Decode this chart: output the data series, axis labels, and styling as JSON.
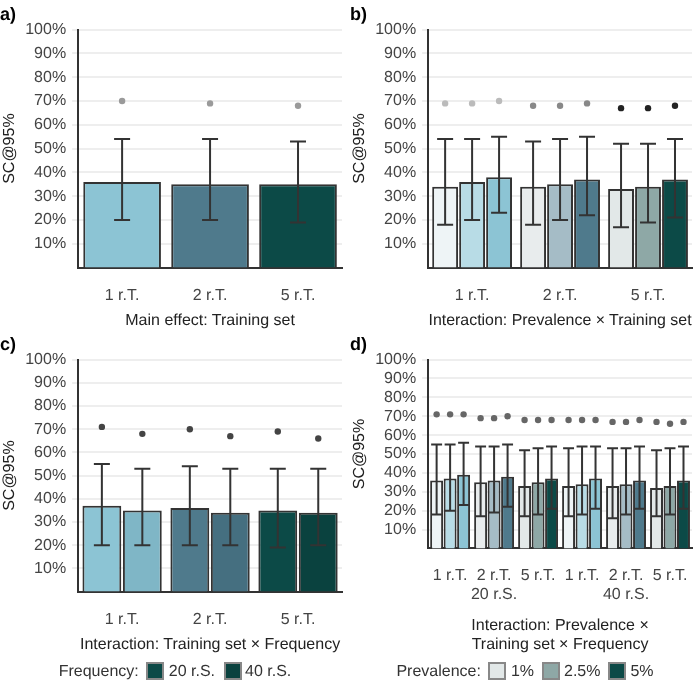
{
  "chart_data": [
    {
      "type": "bar",
      "title": "a)",
      "xlabel": "Main effect: Training set",
      "ylabel": "SC@95%",
      "categories": [
        "1 r.T.",
        "2 r.T.",
        "5 r.T."
      ],
      "ylim": [
        0,
        100
      ],
      "yticks": [
        {
          "value": 10,
          "label": "10%"
        },
        {
          "value": 20,
          "label": "20%"
        },
        {
          "value": 30,
          "label": "30%"
        },
        {
          "value": 40,
          "label": "40%"
        },
        {
          "value": 50,
          "label": "50%"
        },
        {
          "value": 60,
          "label": "60%"
        },
        {
          "value": 70,
          "label": "70%"
        },
        {
          "value": 80,
          "label": "80%"
        },
        {
          "value": 90,
          "label": "90%"
        },
        {
          "value": 100,
          "label": "100%"
        }
      ],
      "grid": "y",
      "legend": false,
      "series": [
        {
          "values": [
            36,
            35,
            35
          ],
          "colors": [
            "#8cc4d4",
            "#4f7a8c",
            "#0c4a47"
          ],
          "errors": [
            [
              20,
              54
            ],
            [
              20,
              54
            ],
            [
              19,
              53
            ]
          ]
        },
        {
          "type": "scatter",
          "values": [
            70,
            69,
            68
          ],
          "color": "#9a9a9a"
        }
      ]
    },
    {
      "type": "bar",
      "title": "b)",
      "xlabel": "Interaction: Prevalence × Training set",
      "ylabel": "SC@95%",
      "categories": [
        "1 r.T.",
        "2 r.T.",
        "5 r.T."
      ],
      "ylim": [
        0,
        100
      ],
      "yticks": [
        {
          "value": 10,
          "label": "10%"
        },
        {
          "value": 20,
          "label": "20%"
        },
        {
          "value": 30,
          "label": "30%"
        },
        {
          "value": 40,
          "label": "40%"
        },
        {
          "value": 50,
          "label": "50%"
        },
        {
          "value": 60,
          "label": "60%"
        },
        {
          "value": 70,
          "label": "70%"
        },
        {
          "value": 80,
          "label": "80%"
        },
        {
          "value": 90,
          "label": "90%"
        },
        {
          "value": 100,
          "label": "100%"
        }
      ],
      "grid": "y",
      "legend": false,
      "series": [
        {
          "values": [
            34,
            34,
            33
          ],
          "colors": [
            "#eef4f6",
            "#e8eced",
            "#e2e8e8"
          ],
          "errors": [
            [
              18,
              54
            ],
            [
              18,
              53
            ],
            [
              17,
              52
            ]
          ]
        },
        {
          "values": [
            36,
            35,
            34
          ],
          "colors": [
            "#b8dce6",
            "#a5bcc6",
            "#8ea8a6"
          ],
          "errors": [
            [
              20,
              54
            ],
            [
              20,
              54
            ],
            [
              19,
              52
            ]
          ]
        },
        {
          "values": [
            38,
            37,
            37
          ],
          "colors": [
            "#8cc4d4",
            "#4f7a8c",
            "#0c4a47"
          ],
          "errors": [
            [
              23,
              55
            ],
            [
              22,
              55
            ],
            [
              21,
              54
            ]
          ]
        },
        {
          "type": "scatter",
          "values": [
            69,
            68,
            67
          ],
          "colors": [
            "#bbbbbb",
            "#888888",
            "#222222"
          ]
        },
        {
          "type": "scatter",
          "values": [
            69,
            68,
            67
          ],
          "colors": [
            "#bbbbbb",
            "#888888",
            "#222222"
          ]
        },
        {
          "type": "scatter",
          "values": [
            70,
            69,
            68
          ],
          "colors": [
            "#bbbbbb",
            "#888888",
            "#222222"
          ]
        }
      ]
    },
    {
      "type": "bar",
      "title": "c)",
      "xlabel": "Interaction: Training set × Frequency",
      "ylabel": "SC@95%",
      "legend_title": "Frequency:",
      "categories": [
        "1 r.T.",
        "2 r.T.",
        "5 r.T."
      ],
      "ylim": [
        0,
        100
      ],
      "yticks": [
        {
          "value": 10,
          "label": "10%"
        },
        {
          "value": 20,
          "label": "20%"
        },
        {
          "value": 30,
          "label": "30%"
        },
        {
          "value": 40,
          "label": "40%"
        },
        {
          "value": 50,
          "label": "50%"
        },
        {
          "value": 60,
          "label": "60%"
        },
        {
          "value": 70,
          "label": "70%"
        },
        {
          "value": 80,
          "label": "80%"
        },
        {
          "value": 90,
          "label": "90%"
        },
        {
          "value": 100,
          "label": "100%"
        }
      ],
      "grid": "y",
      "legend": "bottom",
      "series": [
        {
          "name": "20 r.S.",
          "values": [
            37,
            36,
            35
          ],
          "colors": [
            "#8cc4d4",
            "#4f7a8c",
            "#0c4a47"
          ],
          "errors": [
            [
              20,
              55
            ],
            [
              20,
              54
            ],
            [
              19,
              53
            ]
          ]
        },
        {
          "name": "40 r.S.",
          "values": [
            35,
            34,
            34
          ],
          "colors": [
            "#7fb6c6",
            "#456f80",
            "#0a423f"
          ],
          "errors": [
            [
              20,
              53
            ],
            [
              20,
              53
            ],
            [
              20,
              53
            ]
          ]
        },
        {
          "type": "scatter",
          "values": [
            71,
            70,
            69
          ],
          "color": "#444444"
        },
        {
          "type": "scatter",
          "values": [
            68,
            67,
            66
          ],
          "color": "#444444"
        }
      ]
    },
    {
      "type": "bar",
      "title": "d)",
      "xlabel": "Interaction: Prevalence × Training set × Frequency",
      "ylabel": "SC@95%",
      "legend_title": "Prevalence:",
      "annotations": [
        "20 r.S.",
        "40 r.S."
      ],
      "categories": [
        "1 r.T.",
        "2 r.T.",
        "5 r.T.",
        "1 r.T.",
        "2 r.T.",
        "5 r.T."
      ],
      "ylim": [
        0,
        100
      ],
      "yticks": [
        {
          "value": 10,
          "label": "10%"
        },
        {
          "value": 20,
          "label": "20%"
        },
        {
          "value": 30,
          "label": "30%"
        },
        {
          "value": 40,
          "label": "40%"
        },
        {
          "value": 50,
          "label": "50%"
        },
        {
          "value": 60,
          "label": "60%"
        },
        {
          "value": 70,
          "label": "70%"
        },
        {
          "value": 80,
          "label": "80%"
        },
        {
          "value": 90,
          "label": "90%"
        },
        {
          "value": 100,
          "label": "100%"
        }
      ],
      "grid": "y",
      "legend": "bottom",
      "series": [
        {
          "name": "1%",
          "values": [
            36,
            35,
            33,
            33,
            33,
            32
          ],
          "colors": [
            "#eef4f6",
            "#e8eced",
            "#e2e8e8",
            "#eef4f6",
            "#e8eced",
            "#e2e8e8"
          ],
          "errors": [
            [
              18,
              55
            ],
            [
              17,
              54
            ],
            [
              17,
              52
            ],
            [
              17,
              53
            ],
            [
              16,
              53
            ],
            [
              17,
              52
            ]
          ]
        },
        {
          "name": "2.5%",
          "values": [
            37,
            36,
            35,
            34,
            34,
            33
          ],
          "colors": [
            "#b8dce6",
            "#a5bcc6",
            "#8ea8a6",
            "#b8dce6",
            "#a5bcc6",
            "#8ea8a6"
          ],
          "errors": [
            [
              20,
              55
            ],
            [
              19,
              54
            ],
            [
              18,
              53
            ],
            [
              18,
              54
            ],
            [
              18,
              53
            ],
            [
              18,
              53
            ]
          ]
        },
        {
          "name": "5%",
          "values": [
            39,
            38,
            37,
            37,
            36,
            36
          ],
          "colors": [
            "#8cc4d4",
            "#4f7a8c",
            "#0c4a47",
            "#8cc4d4",
            "#4f7a8c",
            "#0c4a47"
          ],
          "errors": [
            [
              23,
              56
            ],
            [
              22,
              55
            ],
            [
              21,
              54
            ],
            [
              21,
              54
            ],
            [
              21,
              54
            ],
            [
              21,
              54
            ]
          ]
        },
        {
          "type": "scatter",
          "values": [
            71,
            69,
            68,
            68,
            67,
            67
          ],
          "color": "#666666"
        },
        {
          "type": "scatter",
          "values": [
            71,
            69,
            68,
            68,
            67,
            66
          ],
          "color": "#666666"
        },
        {
          "type": "scatter",
          "values": [
            71,
            70,
            68,
            68,
            68,
            67
          ],
          "color": "#666666"
        }
      ]
    }
  ]
}
